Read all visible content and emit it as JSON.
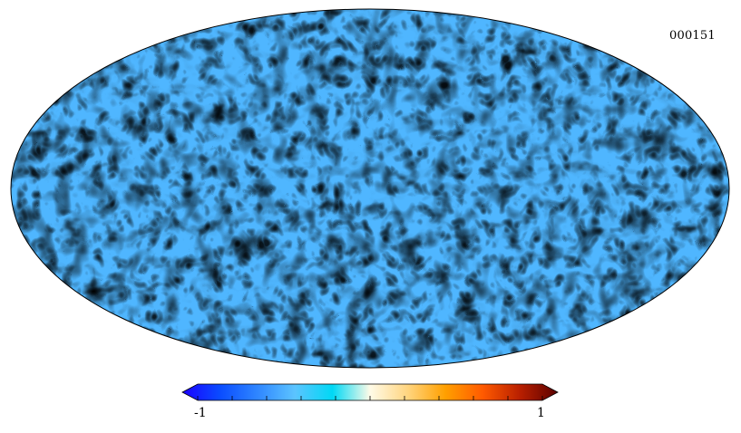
{
  "map": {
    "projection": "mollweide",
    "label": "000151"
  },
  "colorbar": {
    "min_label": "-1",
    "max_label": "1",
    "min_value": -1,
    "max_value": 1,
    "tick_count": 11,
    "colors": [
      "#1a00ff",
      "#0a4cff",
      "#2f86ff",
      "#5cc4ff",
      "#00d8f5",
      "#fffbe8",
      "#ffd580",
      "#ffa000",
      "#ff5a00",
      "#b81f00",
      "#5a0000"
    ]
  }
}
